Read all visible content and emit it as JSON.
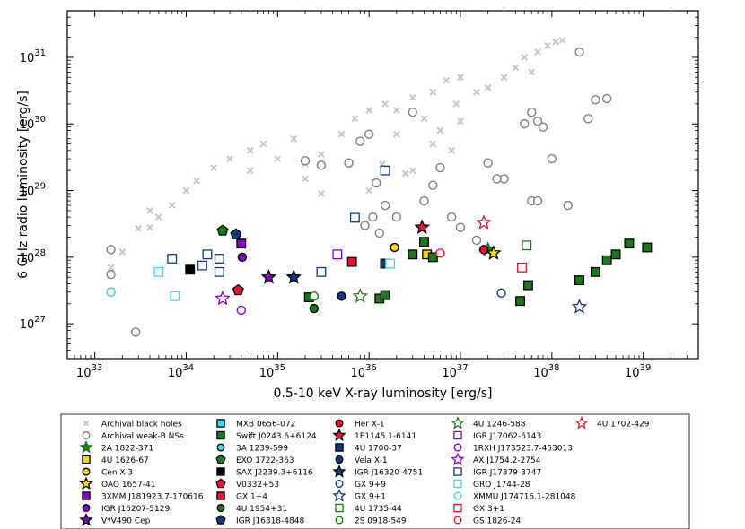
{
  "chart_data": {
    "type": "scatter",
    "title": "",
    "xlabel": "0.5-10 keV X-ray luminosity [erg/s]",
    "ylabel": "6 GHz radio luminosity [erg/s]",
    "x_scale": "log",
    "y_scale": "log",
    "xlim": [
      5e+32,
      4e+39
    ],
    "ylim": [
      3e+26,
      5e+31
    ],
    "xticks": [
      {
        "mantissa": "10",
        "exp": "33",
        "value": 1e+33
      },
      {
        "mantissa": "10",
        "exp": "34",
        "value": 1e+34
      },
      {
        "mantissa": "10",
        "exp": "35",
        "value": 1e+35
      },
      {
        "mantissa": "10",
        "exp": "36",
        "value": 1e+36
      },
      {
        "mantissa": "10",
        "exp": "37",
        "value": 1e+37
      },
      {
        "mantissa": "10",
        "exp": "38",
        "value": 1e+38
      },
      {
        "mantissa": "10",
        "exp": "39",
        "value": 1e+39
      }
    ],
    "yticks": [
      {
        "mantissa": "10",
        "exp": "27",
        "value": 1e+27
      },
      {
        "mantissa": "10",
        "exp": "28",
        "value": 1e+28
      },
      {
        "mantissa": "10",
        "exp": "29",
        "value": 1e+29
      },
      {
        "mantissa": "10",
        "exp": "30",
        "value": 1e+30
      },
      {
        "mantissa": "10",
        "exp": "31",
        "value": 1e+31
      }
    ],
    "grid": false,
    "legend_position": "below",
    "series": [
      {
        "name": "Archival black holes",
        "marker": "x",
        "color": "#c8c8c8",
        "fill": "none",
        "points": [
          [
            1.5e+33,
            7e+27
          ],
          [
            2e+33,
            1.2e+28
          ],
          [
            3e+33,
            2.7e+28
          ],
          [
            4e+33,
            2.8e+28
          ],
          [
            5e+33,
            4e+28
          ],
          [
            7e+33,
            6e+28
          ],
          [
            1e+34,
            1e+29
          ],
          [
            1.3e+34,
            1.4e+29
          ],
          [
            2e+34,
            2.2e+29
          ],
          [
            3e+34,
            3e+29
          ],
          [
            5e+34,
            4e+29
          ],
          [
            7e+34,
            5e+29
          ],
          [
            1e+35,
            3e+29
          ],
          [
            1.5e+35,
            6e+29
          ],
          [
            2e+35,
            2.5e+29
          ],
          [
            3e+35,
            3.5e+29
          ],
          [
            5e+35,
            7e+29
          ],
          [
            7e+35,
            1.2e+30
          ],
          [
            1e+36,
            1.6e+30
          ],
          [
            1.5e+36,
            2e+30
          ],
          [
            2e+36,
            1.6e+30
          ],
          [
            3e+36,
            2.5e+30
          ],
          [
            5e+36,
            3e+30
          ],
          [
            7e+36,
            4.5e+30
          ],
          [
            1e+37,
            5e+30
          ],
          [
            1.5e+37,
            3e+30
          ],
          [
            2e+37,
            3.5e+30
          ],
          [
            3e+37,
            5e+30
          ],
          [
            4e+37,
            7e+30
          ],
          [
            5e+37,
            1e+31
          ],
          [
            7e+37,
            1.2e+31
          ],
          [
            9e+37,
            1.5e+31
          ],
          [
            1.1e+38,
            1.7e+31
          ],
          [
            1.3e+38,
            1.8e+31
          ],
          [
            2e+36,
            7e+29
          ],
          [
            1e+36,
            1e+29
          ],
          [
            3e+36,
            2e+29
          ],
          [
            5e+36,
            5e+29
          ],
          [
            2e+35,
            1.5e+29
          ],
          [
            1e+37,
            1.1e+30
          ],
          [
            4e+36,
            1.2e+30
          ],
          [
            6e+36,
            8e+29
          ],
          [
            8e+36,
            4e+29
          ],
          [
            3e+35,
            9e+28
          ],
          [
            1.4e+36,
            2.5e+29
          ],
          [
            2.5e+36,
            1.8e+29
          ],
          [
            5e+34,
            2e+29
          ],
          [
            4e+33,
            5e+28
          ],
          [
            9e+36,
            2e+30
          ],
          [
            6e+37,
            6e+30
          ]
        ]
      },
      {
        "name": "Archival weak-B NSs",
        "marker": "o",
        "color": "#808080",
        "fill": "none",
        "points": [
          [
            1.5e+33,
            1.3e+28
          ],
          [
            1.5e+33,
            5.5e+27
          ],
          [
            2.8e+33,
            7.5e+26
          ],
          [
            2e+35,
            2.8e+29
          ],
          [
            3e+35,
            2.4e+29
          ],
          [
            6e+35,
            2.6e+29
          ],
          [
            8e+35,
            5.5e+29
          ],
          [
            1e+36,
            7e+29
          ],
          [
            1.2e+36,
            1.3e+29
          ],
          [
            1.5e+36,
            6e+28
          ],
          [
            2e+36,
            4e+28
          ],
          [
            3e+36,
            1.5e+30
          ],
          [
            4e+36,
            7e+28
          ],
          [
            5e+36,
            1.2e+29
          ],
          [
            6e+36,
            2.2e+29
          ],
          [
            8e+36,
            4e+28
          ],
          [
            1e+37,
            2.8e+28
          ],
          [
            1.5e+37,
            1.8e+28
          ],
          [
            2e+37,
            2.6e+29
          ],
          [
            3e+37,
            1.5e+29
          ],
          [
            5e+37,
            1e+30
          ],
          [
            6e+37,
            1.5e+30
          ],
          [
            7e+37,
            1.1e+30
          ],
          [
            8e+37,
            9e+29
          ],
          [
            1e+38,
            3e+29
          ],
          [
            6e+37,
            7e+28
          ],
          [
            7e+37,
            7e+28
          ],
          [
            1.5e+38,
            6e+28
          ],
          [
            2e+38,
            1.2e+31
          ],
          [
            2.5e+38,
            1.2e+30
          ],
          [
            3e+38,
            2.3e+30
          ],
          [
            4e+38,
            2.4e+30
          ],
          [
            2.5e+37,
            1.5e+29
          ],
          [
            1.1e+36,
            4e+28
          ],
          [
            9e+35,
            3e+28
          ],
          [
            1.3e+36,
            2.3e+28
          ]
        ]
      },
      {
        "name": "2A 1822-371",
        "marker": "star",
        "color": "#1a7a1a",
        "fill": "#1a7a1a",
        "points": [
          [
            2e+37,
            1.3e+28
          ]
        ]
      },
      {
        "name": "4U 1626-67",
        "marker": "square",
        "color": "#000000",
        "fill": "#ffd700",
        "points": [
          [
            4.3e+36,
            1.1e+28
          ]
        ]
      },
      {
        "name": "Cen X-3",
        "marker": "o",
        "color": "#000000",
        "fill": "#ffd700",
        "points": [
          [
            1.9e+36,
            1.4e+28
          ]
        ]
      },
      {
        "name": "OAO 1657-41",
        "marker": "star",
        "color": "#000000",
        "fill": "#ffd700",
        "points": [
          [
            2.3e+37,
            1.15e+28
          ]
        ]
      },
      {
        "name": "3XMM J181923.7-170616",
        "marker": "square",
        "color": "#000000",
        "fill": "#8a00cc",
        "points": [
          [
            4e+34,
            1.6e+28
          ]
        ]
      },
      {
        "name": "IGR J16207-5129",
        "marker": "o",
        "color": "#000000",
        "fill": "#8a00cc",
        "points": [
          [
            4.1e+34,
            1e+28
          ]
        ]
      },
      {
        "name": "V*V490 Cep",
        "marker": "star",
        "color": "#000000",
        "fill": "#8a00cc",
        "points": [
          [
            8e+34,
            5e+27
          ]
        ]
      },
      {
        "name": "MXB 0656-072",
        "marker": "square",
        "color": "#000000",
        "fill": "#33ddee",
        "points": [
          [
            1.5e+36,
            8e+27
          ]
        ]
      },
      {
        "name": "Swift J0243.6+6124",
        "marker": "square",
        "color": "#000000",
        "fill": "#1a7a1a",
        "points": [
          [
            2.2e+35,
            2.5e+27
          ],
          [
            1.3e+36,
            2.4e+27
          ],
          [
            1.5e+36,
            2.7e+27
          ],
          [
            3e+36,
            1.1e+28
          ],
          [
            4e+36,
            1.7e+28
          ],
          [
            5e+36,
            1e+28
          ],
          [
            4.5e+37,
            2.2e+27
          ],
          [
            5.5e+37,
            3.8e+27
          ],
          [
            2e+38,
            4.5e+27
          ],
          [
            3e+38,
            6e+27
          ],
          [
            4e+38,
            9e+27
          ],
          [
            5e+38,
            1.1e+28
          ],
          [
            7e+38,
            1.6e+28
          ],
          [
            1.1e+39,
            1.4e+28
          ]
        ]
      },
      {
        "name": "3A 1239-599",
        "marker": "o",
        "color": "#000000",
        "fill": "#33ddee",
        "points": [
          [
            1.5e+33,
            3e+27
          ]
        ]
      },
      {
        "name": "EXO 1722-363",
        "marker": "pentagon",
        "color": "#000000",
        "fill": "#1a7a1a",
        "points": [
          [
            2.5e+34,
            2.5e+28
          ]
        ]
      },
      {
        "name": "SAX J2239.3+6116",
        "marker": "square",
        "color": "#000000",
        "fill": "#000000",
        "points": [
          [
            1.1e+34,
            6.5e+27
          ]
        ]
      },
      {
        "name": "V0332+53",
        "marker": "pentagon",
        "color": "#000000",
        "fill": "#ee1133",
        "points": [
          [
            3.7e+34,
            3.2e+27
          ]
        ]
      },
      {
        "name": "GX 1+4",
        "marker": "square",
        "color": "#000000",
        "fill": "#ee1133",
        "points": [
          [
            6.5e+35,
            8.5e+27
          ]
        ]
      },
      {
        "name": "4U 1954+31",
        "marker": "o",
        "color": "#000000",
        "fill": "#1a7a1a",
        "points": [
          [
            2.5e+35,
            1.7e+27
          ]
        ]
      },
      {
        "name": "IGR J16318-4848",
        "marker": "pentagon",
        "color": "#000000",
        "fill": "#103a80",
        "points": [
          [
            3.5e+34,
            2.2e+28
          ]
        ]
      },
      {
        "name": "Her X-1",
        "marker": "o",
        "color": "#000000",
        "fill": "#ee1133",
        "points": [
          [
            1.8e+37,
            1.3e+28
          ]
        ]
      },
      {
        "name": "1E1145.1-6141",
        "marker": "star",
        "color": "#000000",
        "fill": "#ee1133",
        "points": [
          [
            3.8e+36,
            2.8e+28
          ]
        ]
      },
      {
        "name": "4U 1700-37",
        "marker": "square",
        "color": "#000000",
        "fill": "#103a80",
        "points": [
          [
            1.5e+36,
            8e+27
          ]
        ]
      },
      {
        "name": "Vela X-1",
        "marker": "o",
        "color": "#000000",
        "fill": "#103a80",
        "points": [
          [
            5e+35,
            2.6e+27
          ]
        ]
      },
      {
        "name": "IGR J16320-4751",
        "marker": "star",
        "color": "#000000",
        "fill": "#103a80",
        "points": [
          [
            1.5e+35,
            5e+27
          ]
        ]
      },
      {
        "name": "GX 9+9",
        "marker": "o",
        "color": "#103a80",
        "fill": "none",
        "points": [
          [
            2.8e+37,
            2.9e+27
          ]
        ]
      },
      {
        "name": "GX 9+1",
        "marker": "star",
        "color": "#103a80",
        "fill": "none",
        "points": [
          [
            2e+38,
            1.8e+27
          ]
        ]
      },
      {
        "name": "4U 1735-44",
        "marker": "square",
        "color": "#1a7a1a",
        "fill": "none",
        "points": [
          [
            5.3e+37,
            1.5e+28
          ]
        ]
      },
      {
        "name": "2S 0918-549",
        "marker": "o",
        "color": "#1a7a1a",
        "fill": "none",
        "points": [
          [
            2.5e+35,
            2.6e+27
          ]
        ]
      },
      {
        "name": "4U 1246-588",
        "marker": "star",
        "color": "#1a7a1a",
        "fill": "none",
        "points": [
          [
            8e+35,
            2.6e+27
          ]
        ]
      },
      {
        "name": "IGR J17062-6143",
        "marker": "square",
        "color": "#8a00cc",
        "fill": "none",
        "points": [
          [
            4.5e+35,
            1.1e+28
          ]
        ]
      },
      {
        "name": "1RXH J173523.7-453013",
        "marker": "o",
        "color": "#8a00cc",
        "fill": "none",
        "points": [
          [
            4e+34,
            1.6e+27
          ]
        ]
      },
      {
        "name": "AX J1754.2-2754",
        "marker": "star",
        "color": "#8a00cc",
        "fill": "none",
        "points": [
          [
            2.5e+34,
            2.4e+27
          ]
        ]
      },
      {
        "name": "IGR J17379-3747",
        "marker": "square",
        "color": "#103a80",
        "fill": "none",
        "points": [
          [
            7e+33,
            9.5e+27
          ],
          [
            1.7e+34,
            1.1e+28
          ],
          [
            2.3e+34,
            9.5e+27
          ],
          [
            1.5e+34,
            7.5e+27
          ],
          [
            2.3e+34,
            6e+27
          ],
          [
            3e+35,
            6e+27
          ],
          [
            7e+35,
            3.9e+28
          ],
          [
            1.5e+36,
            2e+29
          ]
        ]
      },
      {
        "name": "GRO J1744-28",
        "marker": "square",
        "color": "#33ddee",
        "fill": "none",
        "points": [
          [
            7.5e+33,
            2.6e+27
          ],
          [
            1.7e+36,
            8e+27
          ],
          [
            5e+33,
            6e+27
          ]
        ]
      },
      {
        "name": "XMMU J174716.1-281048",
        "marker": "o",
        "color": "#33ddee",
        "fill": "none",
        "points": [
          [
            1.5e+33,
            3e+27
          ]
        ]
      },
      {
        "name": "GX 3+1",
        "marker": "square",
        "color": "#ee1133",
        "fill": "none",
        "points": [
          [
            4.7e+37,
            7e+27
          ]
        ]
      },
      {
        "name": "GS 1826-24",
        "marker": "o",
        "color": "#ee1133",
        "fill": "none",
        "points": [
          [
            6e+36,
            1.15e+28
          ]
        ]
      },
      {
        "name": "4U 1702-429",
        "marker": "star",
        "color": "#ee1133",
        "fill": "none",
        "points": [
          [
            1.8e+37,
            3.3e+28
          ]
        ]
      }
    ]
  }
}
